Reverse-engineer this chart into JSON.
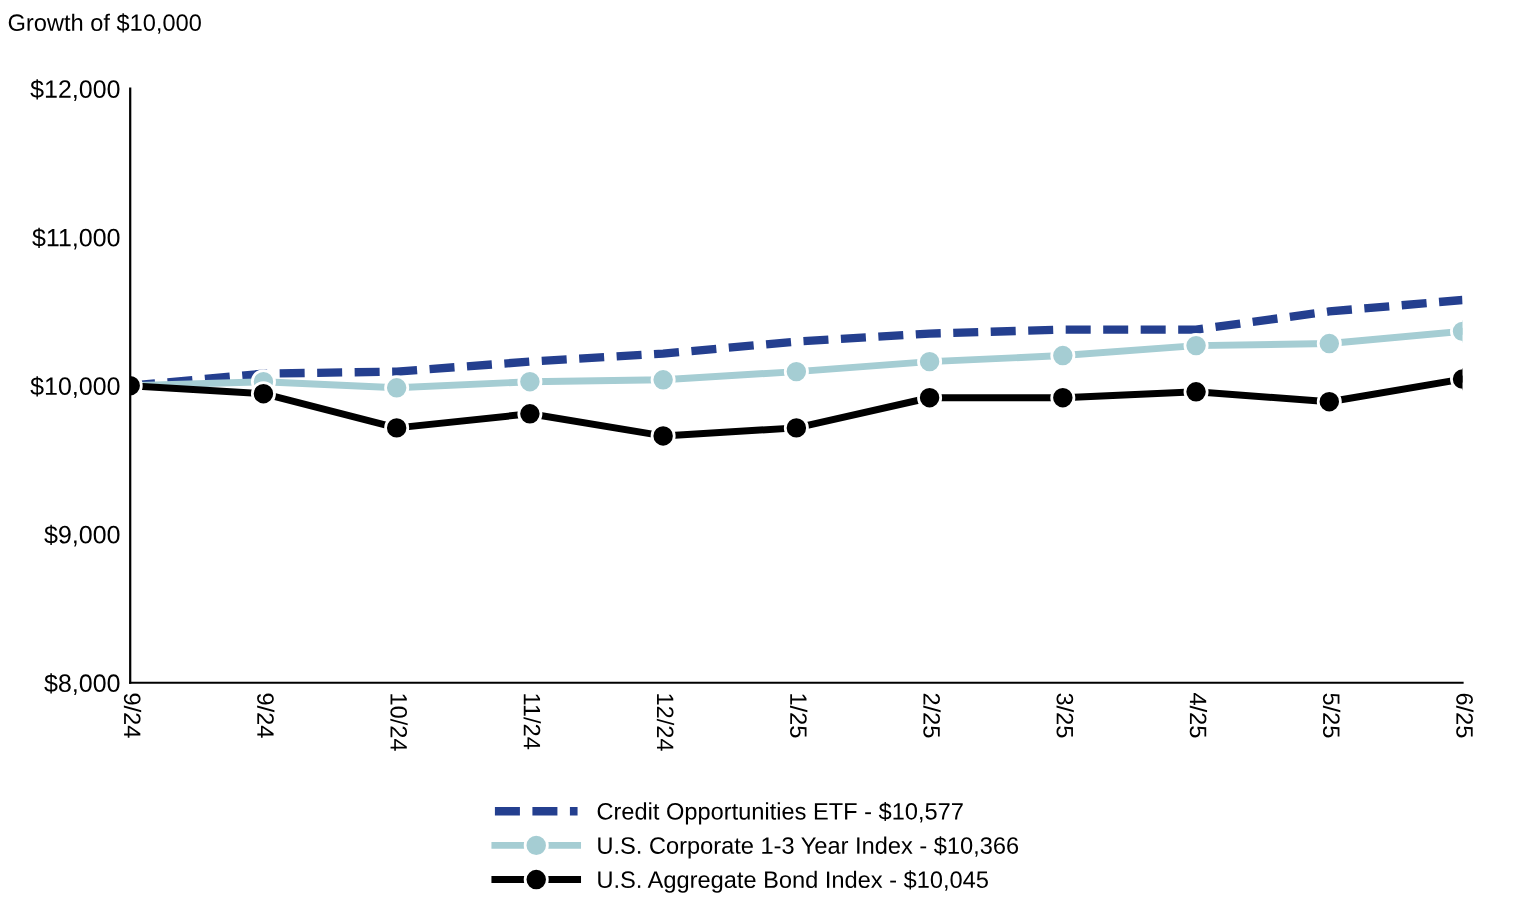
{
  "chart_data": {
    "type": "line",
    "ylabel": "Growth of $10,000",
    "categories": [
      "9/24",
      "9/24",
      "10/24",
      "11/24",
      "12/24",
      "1/25",
      "2/25",
      "3/25",
      "4/25",
      "5/25",
      "6/25"
    ],
    "series": [
      {
        "name": "Credit Opportunities ETF - $10,577",
        "color": "#243f8f",
        "line_style": "dashed",
        "marker": "none",
        "values": [
          10000,
          10081,
          10095,
          10162,
          10216,
          10297,
          10351,
          10378,
          10378,
          10500,
          10577
        ]
      },
      {
        "name": "U.S. Corporate 1-3 Year Index - $10,366",
        "color": "#a5cdd3",
        "line_style": "solid",
        "marker": "circle",
        "values": [
          10000,
          10027,
          9986,
          10027,
          10040,
          10095,
          10162,
          10203,
          10270,
          10284,
          10366
        ]
      },
      {
        "name": "U.S. Aggregate Bond Index - $10,045",
        "color": "#000000",
        "line_style": "solid",
        "marker": "circle",
        "values": [
          10000,
          9946,
          9716,
          9811,
          9662,
          9716,
          9919,
          9919,
          9959,
          9892,
          10045
        ]
      }
    ],
    "ylim": [
      8000,
      12000
    ],
    "yticks": [
      {
        "value": 8000,
        "label": "$8,000"
      },
      {
        "value": 9000,
        "label": "$9,000"
      },
      {
        "value": 10000,
        "label": "$10,000"
      },
      {
        "value": 11000,
        "label": "$11,000"
      },
      {
        "value": 12000,
        "label": "$12,000"
      }
    ],
    "grid": false,
    "legend": "bottom"
  }
}
